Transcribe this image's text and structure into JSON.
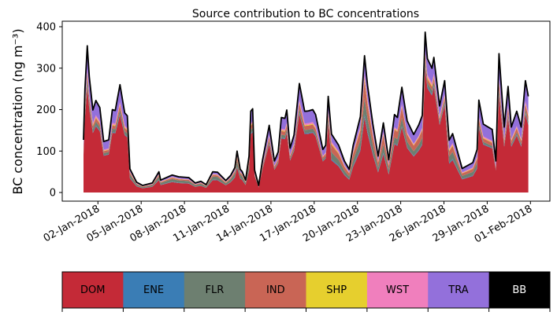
{
  "chart_data": {
    "type": "area",
    "title": "Source contribution to BC concentrations",
    "ylabel": "BC concentration (ng m⁻³)",
    "xlabel": "",
    "ylim": [
      -20,
      410
    ],
    "yticks": [
      0,
      100,
      200,
      300,
      400
    ],
    "xlim_days": [
      -1.5,
      32.3
    ],
    "xticks": [
      {
        "day": 1,
        "label": "02-Jan-2018"
      },
      {
        "day": 4,
        "label": "05-Jan-2018"
      },
      {
        "day": 7,
        "label": "08-Jan-2018"
      },
      {
        "day": 10,
        "label": "11-Jan-2018"
      },
      {
        "day": 13,
        "label": "14-Jan-2018"
      },
      {
        "day": 16,
        "label": "17-Jan-2018"
      },
      {
        "day": 19,
        "label": "20-Jan-2018"
      },
      {
        "day": 22,
        "label": "23-Jan-2018"
      },
      {
        "day": 25,
        "label": "26-Jan-2018"
      },
      {
        "day": 28,
        "label": "29-Jan-2018"
      },
      {
        "day": 31,
        "label": "01-Feb-2018"
      }
    ],
    "x_units": "days since 01-Jan-2018",
    "x": [
      0,
      0.1,
      0.26,
      0.4,
      0.65,
      0.86,
      1.13,
      1.4,
      1.75,
      2.0,
      2.2,
      2.53,
      2.86,
      3.04,
      3.22,
      3.68,
      4.1,
      4.77,
      5.23,
      5.35,
      5.55,
      6.14,
      6.6,
      7.3,
      7.75,
      8.14,
      8.5,
      8.96,
      9.3,
      9.87,
      10.2,
      10.5,
      10.65,
      10.87,
      11.0,
      11.24,
      11.48,
      11.6,
      11.73,
      11.87,
      12.15,
      12.42,
      12.88,
      13.24,
      13.5,
      13.72,
      13.97,
      14.1,
      14.33,
      14.6,
      14.97,
      15.34,
      15.6,
      15.9,
      16.1,
      16.6,
      16.8,
      16.97,
      17.2,
      17.7,
      18.1,
      18.43,
      18.7,
      19.2,
      19.49,
      19.7,
      20.07,
      20.43,
      20.8,
      21.17,
      21.57,
      21.77,
      22.08,
      22.45,
      22.9,
      23.25,
      23.5,
      23.7,
      23.85,
      24.17,
      24.3,
      24.7,
      25.05,
      25.36,
      25.6,
      26.26,
      27.0,
      27.3,
      27.42,
      27.73,
      28.35,
      28.6,
      28.82,
      29.18,
      29.45,
      29.67,
      30.05,
      30.36,
      30.65,
      30.85
    ],
    "total": [
      127,
      250,
      354,
      280,
      199,
      222,
      205,
      123,
      127,
      200,
      198,
      260,
      192,
      185,
      57,
      25,
      17,
      23,
      50,
      30,
      33,
      42,
      38,
      36,
      23,
      27,
      19,
      50,
      49,
      29,
      41,
      60,
      100,
      56,
      51,
      30,
      88,
      196,
      202,
      54,
      17,
      79,
      162,
      76,
      98,
      181,
      179,
      199,
      107,
      139,
      263,
      196,
      197,
      200,
      188,
      104,
      114,
      232,
      141,
      114,
      76,
      56,
      113,
      183,
      330,
      259,
      165,
      88,
      168,
      79,
      188,
      181,
      254,
      173,
      140,
      163,
      186,
      387,
      323,
      300,
      326,
      209,
      270,
      126,
      142,
      58,
      72,
      104,
      223,
      165,
      152,
      76,
      335,
      158,
      256,
      158,
      196,
      158,
      270,
      232
    ],
    "series": [
      {
        "name": "DOM",
        "color": "#c42a37"
      },
      {
        "name": "ENE",
        "color": "#3a7db5"
      },
      {
        "name": "FLR",
        "color": "#6d7f70"
      },
      {
        "name": "IND",
        "color": "#c96555"
      },
      {
        "name": "SHP",
        "color": "#e6cf2e"
      },
      {
        "name": "WST",
        "color": "#f07fbd"
      },
      {
        "name": "TRA",
        "color": "#9370db"
      },
      {
        "name": "BB",
        "color": "#000000"
      }
    ],
    "share_periods": [
      {
        "until_day": 3.2,
        "shares": [
          0.72,
          0.01,
          0.04,
          0.04,
          0.01,
          0.02,
          0.15,
          0.01
        ]
      },
      {
        "until_day": 11.5,
        "shares": [
          0.6,
          0.02,
          0.15,
          0.07,
          0.02,
          0.03,
          0.1,
          0.01
        ]
      },
      {
        "until_day": 17.0,
        "shares": [
          0.72,
          0.01,
          0.04,
          0.05,
          0.01,
          0.02,
          0.14,
          0.01
        ]
      },
      {
        "until_day": 21.5,
        "shares": [
          0.55,
          0.02,
          0.12,
          0.13,
          0.02,
          0.03,
          0.12,
          0.01
        ]
      },
      {
        "until_day": 23.6,
        "shares": [
          0.62,
          0.01,
          0.08,
          0.1,
          0.01,
          0.02,
          0.15,
          0.01
        ]
      },
      {
        "until_day": 25.3,
        "shares": [
          0.78,
          0.01,
          0.03,
          0.03,
          0.01,
          0.02,
          0.11,
          0.01
        ]
      },
      {
        "until_day": 27.3,
        "shares": [
          0.55,
          0.02,
          0.12,
          0.1,
          0.02,
          0.03,
          0.15,
          0.01
        ]
      },
      {
        "until_day": 31.0,
        "shares": [
          0.7,
          0.01,
          0.03,
          0.05,
          0.01,
          0.02,
          0.17,
          0.01
        ]
      }
    ],
    "total_line_color": "#000000",
    "legend": {
      "placement": "bottom",
      "entries": [
        "DOM",
        "ENE",
        "FLR",
        "IND",
        "SHP",
        "WST",
        "TRA",
        "BB"
      ],
      "text_colors": [
        "#000000",
        "#000000",
        "#000000",
        "#000000",
        "#000000",
        "#000000",
        "#000000",
        "#ffffff"
      ]
    }
  }
}
